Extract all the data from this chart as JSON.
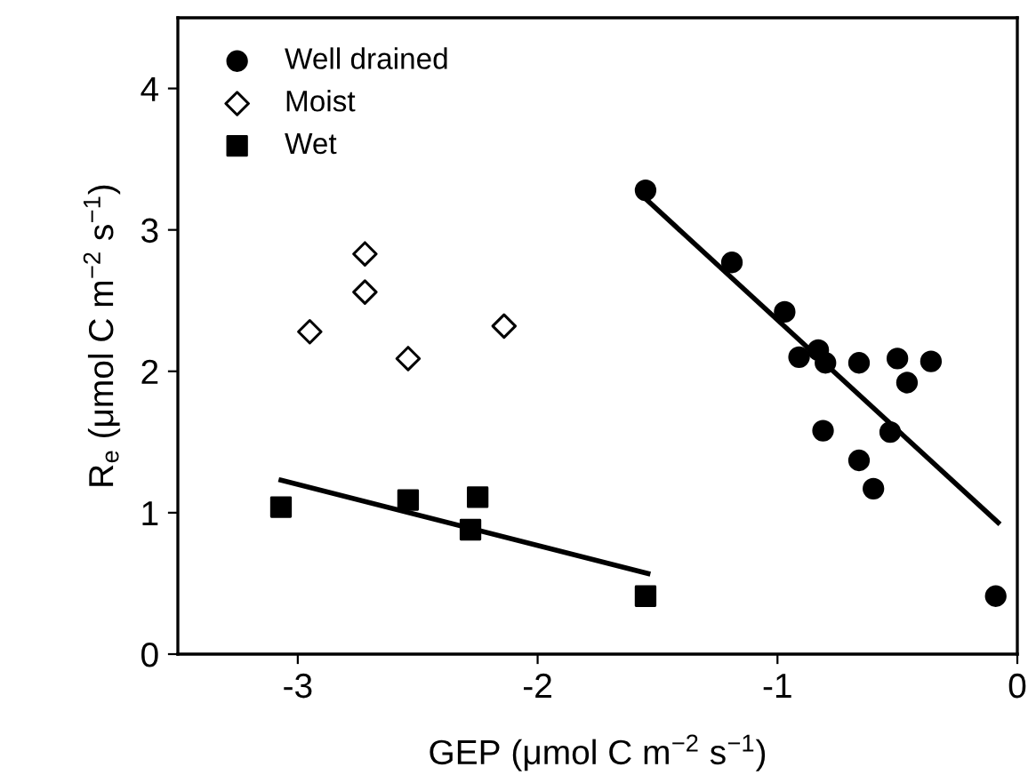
{
  "chart_data": {
    "type": "scatter",
    "xlabel": "GEP (μmol C m$^{−2}$ s$^{−1}$)",
    "ylabel": "R$_{e}$ (μmol C m$^{−2}$ s$^{−1}$)",
    "xlim": [
      -3.5,
      0
    ],
    "ylim": [
      0,
      4.5
    ],
    "xticks": [
      -3,
      -2,
      -1,
      0
    ],
    "yticks": [
      0,
      1,
      2,
      3,
      4
    ],
    "grid": false,
    "legend": "top left",
    "series": [
      {
        "name": "Well drained",
        "color": "#000000",
        "marker": "circle",
        "x": [
          -1.55,
          -1.19,
          -0.97,
          -0.91,
          -0.83,
          -0.8,
          -0.66,
          -0.5,
          -0.36,
          -0.46,
          -0.81,
          -0.53,
          -0.66,
          -0.6,
          -0.09
        ],
        "values": [
          3.28,
          2.77,
          2.42,
          2.1,
          2.15,
          2.06,
          2.06,
          2.09,
          2.07,
          1.92,
          1.58,
          1.57,
          1.37,
          1.17,
          0.41
        ]
      },
      {
        "name": "Moist",
        "color": "#000000",
        "marker": "diamond",
        "x": [
          -2.95,
          -2.72,
          -2.72,
          -2.54,
          -2.14
        ],
        "values": [
          2.28,
          2.83,
          2.56,
          2.09,
          2.32
        ]
      },
      {
        "name": "Wet",
        "color": "#000000",
        "marker": "square",
        "x": [
          -3.07,
          -2.54,
          -2.25,
          -2.28,
          -1.55
        ],
        "values": [
          1.04,
          1.09,
          1.11,
          0.88,
          0.41
        ]
      },
      {
        "type": "line",
        "color": "#000000",
        "marker": "none",
        "line_style": "solid",
        "x": [
          -1.55,
          -0.08
        ],
        "values": [
          3.22,
          0.93
        ]
      },
      {
        "type": "line",
        "color": "#000000",
        "marker": "none",
        "line_style": "solid",
        "x": [
          -3.07,
          -1.54
        ],
        "values": [
          1.23,
          0.57
        ]
      }
    ]
  }
}
